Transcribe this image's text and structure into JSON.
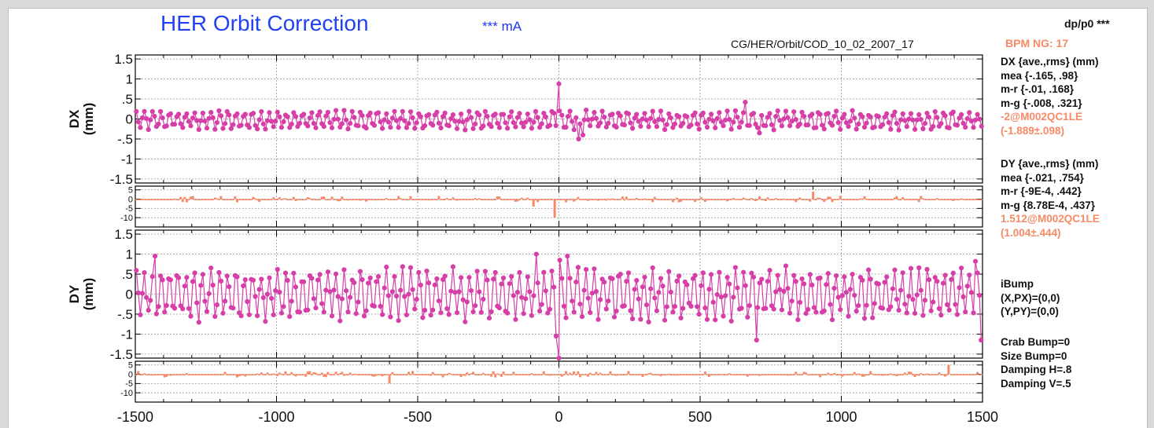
{
  "header": {
    "title": "HER Orbit Correction",
    "current": "*** mA",
    "file_path": "CG/HER/Orbit/COD_10_02_2007_17",
    "dp_label": "dp/p0  ***",
    "bpm_ng": "BPM  NG: 17"
  },
  "sidebar": {
    "dx_header": "DX {ave.,rms} (mm)",
    "dx_mea": " mea {-.165, .98}",
    "dx_mr": " m-r {-.01, .168}",
    "dx_mg": " m-g {-.008, .321}",
    "dx_worst": "-2@M002QC1LE",
    "dx_worst_stat": "(-1.889±.098)",
    "dy_header": "DY {ave.,rms} (mm)",
    "dy_mea": " mea {-.021, .754}",
    "dy_mr": " m-r {-9E-4, .442}",
    "dy_mg": " m-g {8.78E-4, .437}",
    "dy_worst": "1.512@M002QC1LE",
    "dy_worst_stat": "(1.004±.444)",
    "ibump": "iBump",
    "ibump_x": "(X,PX)=(0,0)",
    "ibump_y": "(Y,PY)=(0,0)",
    "crab_bump": "Crab Bump=0",
    "size_bump": "Size Bump=0",
    "damping_h": "Damping H=.8",
    "damping_v": "Damping V=.5"
  },
  "colors": {
    "main_series": "#d63fa8",
    "diff_series": "#f78a66",
    "grid": "#9a9a9a",
    "axis": "#000000"
  },
  "chart_data": [
    {
      "type": "line",
      "panel": "DX",
      "ylabel": "DX\n(mm)",
      "xlim": [
        -1500,
        1500
      ],
      "ylim": [
        -1.6,
        1.6
      ],
      "yticks": [
        1.5,
        1,
        0.5,
        0,
        -0.5,
        -1,
        -1.5
      ],
      "yticklabels": [
        "1.5",
        "1",
        ".5",
        "0",
        "-.5",
        "-1",
        "-1.5"
      ],
      "grid": true,
      "marker": "circle",
      "approx_points": 420,
      "period": 29.5,
      "amplitude": 0.2,
      "offset": -0.03,
      "spikes": [
        {
          "x": 0,
          "y": 0.88
        },
        {
          "x": 2,
          "y": 0.2
        },
        {
          "x": 70,
          "y": -0.5
        },
        {
          "x": 85,
          "y": -0.4
        },
        {
          "x": 660,
          "y": 0.42
        },
        {
          "x": 710,
          "y": -0.35
        }
      ]
    },
    {
      "type": "bar",
      "panel": "DX difference",
      "xlim": [
        -1500,
        1500
      ],
      "ylim": [
        -15,
        7
      ],
      "yticks": [
        5,
        0,
        -5,
        -10
      ],
      "yticklabels": [
        "5",
        "0",
        "-5",
        "-10"
      ],
      "grid": true,
      "approx_points": 420,
      "spikes": [
        {
          "x": -15,
          "y": -10
        },
        {
          "x": -90,
          "y": -4
        },
        {
          "x": 900,
          "y": 4
        }
      ]
    },
    {
      "type": "line",
      "panel": "DY",
      "ylabel": "DY\n(mm)",
      "xlim": [
        -1500,
        1500
      ],
      "ylim": [
        -1.6,
        1.6
      ],
      "yticks": [
        1.5,
        1,
        0.5,
        0,
        -0.5,
        -1,
        -1.5
      ],
      "yticklabels": [
        "1.5",
        "1",
        ".5",
        "0",
        "-.5",
        "-1",
        "-1.5"
      ],
      "grid": true,
      "marker": "circle",
      "approx_points": 420,
      "period": 29.5,
      "amplitude": 0.55,
      "offset": 0.0,
      "spikes": [
        {
          "x": -1430,
          "y": 0.95
        },
        {
          "x": -85,
          "y": 1.22
        },
        {
          "x": -80,
          "y": 1.0
        },
        {
          "x": -10,
          "y": -1.05
        },
        {
          "x": 0,
          "y": -1.6
        },
        {
          "x": 3,
          "y": 0.85
        },
        {
          "x": 30,
          "y": 0.95
        },
        {
          "x": 700,
          "y": -1.15
        },
        {
          "x": 1475,
          "y": 0.82
        },
        {
          "x": 1495,
          "y": -1.15
        }
      ]
    },
    {
      "type": "bar",
      "panel": "DY difference",
      "xlim": [
        -1500,
        1500
      ],
      "ylim": [
        -15,
        7
      ],
      "yticks": [
        5,
        0,
        -5,
        -10
      ],
      "yticklabels": [
        "5",
        "0",
        "-5",
        "-10"
      ],
      "grid": true,
      "approx_points": 420,
      "spikes": [
        {
          "x": -600,
          "y": -5
        },
        {
          "x": 1380,
          "y": 5
        }
      ]
    }
  ],
  "x_axis": {
    "ticks": [
      -1500,
      -1000,
      -500,
      0,
      500,
      1000,
      1500
    ],
    "ticklabels": [
      "-1500",
      "-1000",
      "-500",
      "0",
      "500",
      "1000",
      "1500"
    ]
  }
}
